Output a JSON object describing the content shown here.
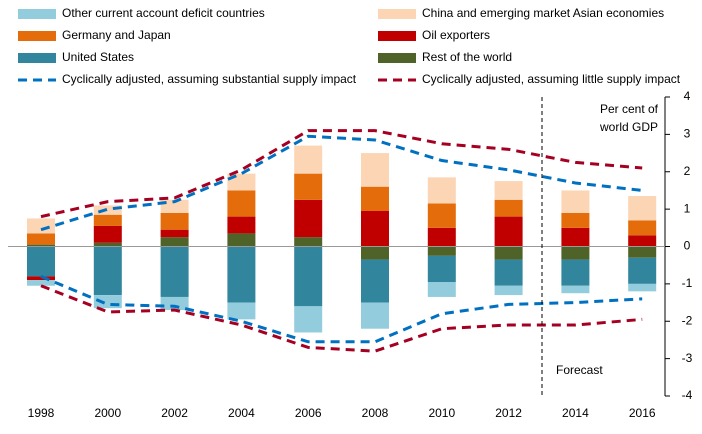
{
  "chart_data": {
    "type": "bar",
    "categories": [
      "1998",
      "2000",
      "2002",
      "2004",
      "2006",
      "2008",
      "2010",
      "2012",
      "2014",
      "2016"
    ],
    "series": [
      {
        "name": "Other current account deficit countries",
        "color": "#93cddd",
        "values": [
          -0.15,
          -0.35,
          -0.35,
          -0.45,
          -0.7,
          -0.7,
          -0.4,
          -0.25,
          -0.2,
          -0.2
        ]
      },
      {
        "name": "China and emerging market Asian economies",
        "color": "#fcd5b5",
        "values": [
          0.4,
          0.25,
          0.35,
          0.45,
          0.75,
          0.9,
          0.7,
          0.5,
          0.6,
          0.65
        ]
      },
      {
        "name": "Germany and Japan",
        "color": "#e46c0a",
        "values": [
          0.3,
          0.3,
          0.45,
          0.7,
          0.7,
          0.65,
          0.65,
          0.45,
          0.4,
          0.4
        ]
      },
      {
        "name": "Oil exporters",
        "color": "#c00000",
        "values": [
          -0.1,
          0.45,
          0.2,
          0.45,
          1.0,
          0.95,
          0.5,
          0.8,
          0.5,
          0.3
        ]
      },
      {
        "name": "United States",
        "color": "#31859c",
        "values": [
          -0.8,
          -1.3,
          -1.35,
          -1.5,
          -1.6,
          -1.15,
          -0.7,
          -0.7,
          -0.7,
          -0.7
        ]
      },
      {
        "name": "Rest of the world",
        "color": "#4f6228",
        "values": [
          0.05,
          0.1,
          0.25,
          0.35,
          0.25,
          -0.35,
          -0.25,
          -0.35,
          -0.35,
          -0.3
        ]
      }
    ],
    "lines": [
      {
        "name": "Cyclically adjusted, assuming substantial supply impact",
        "color": "#0070c0",
        "upper": [
          0.45,
          1.0,
          1.2,
          1.95,
          2.95,
          2.85,
          2.3,
          2.05,
          1.7,
          1.5
        ],
        "lower": [
          -0.8,
          -1.55,
          -1.6,
          -2.0,
          -2.55,
          -2.55,
          -1.8,
          -1.55,
          -1.5,
          -1.4
        ]
      },
      {
        "name": "Cyclically adjusted, assuming little supply impact",
        "color": "#a50021",
        "upper": [
          0.8,
          1.2,
          1.3,
          2.05,
          3.1,
          3.1,
          2.75,
          2.6,
          2.25,
          2.1
        ],
        "lower": [
          -1.05,
          -1.75,
          -1.7,
          -2.1,
          -2.7,
          -2.8,
          -2.2,
          -2.1,
          -2.1,
          -1.95
        ]
      }
    ],
    "ylim": [
      -4,
      4
    ],
    "yticks": [
      -4,
      -3,
      -2,
      -1,
      0,
      1,
      2,
      3,
      4
    ],
    "axis_label": [
      "Per cent of",
      "world GDP"
    ],
    "forecast": {
      "label": "Forecast",
      "x": 2013
    }
  }
}
